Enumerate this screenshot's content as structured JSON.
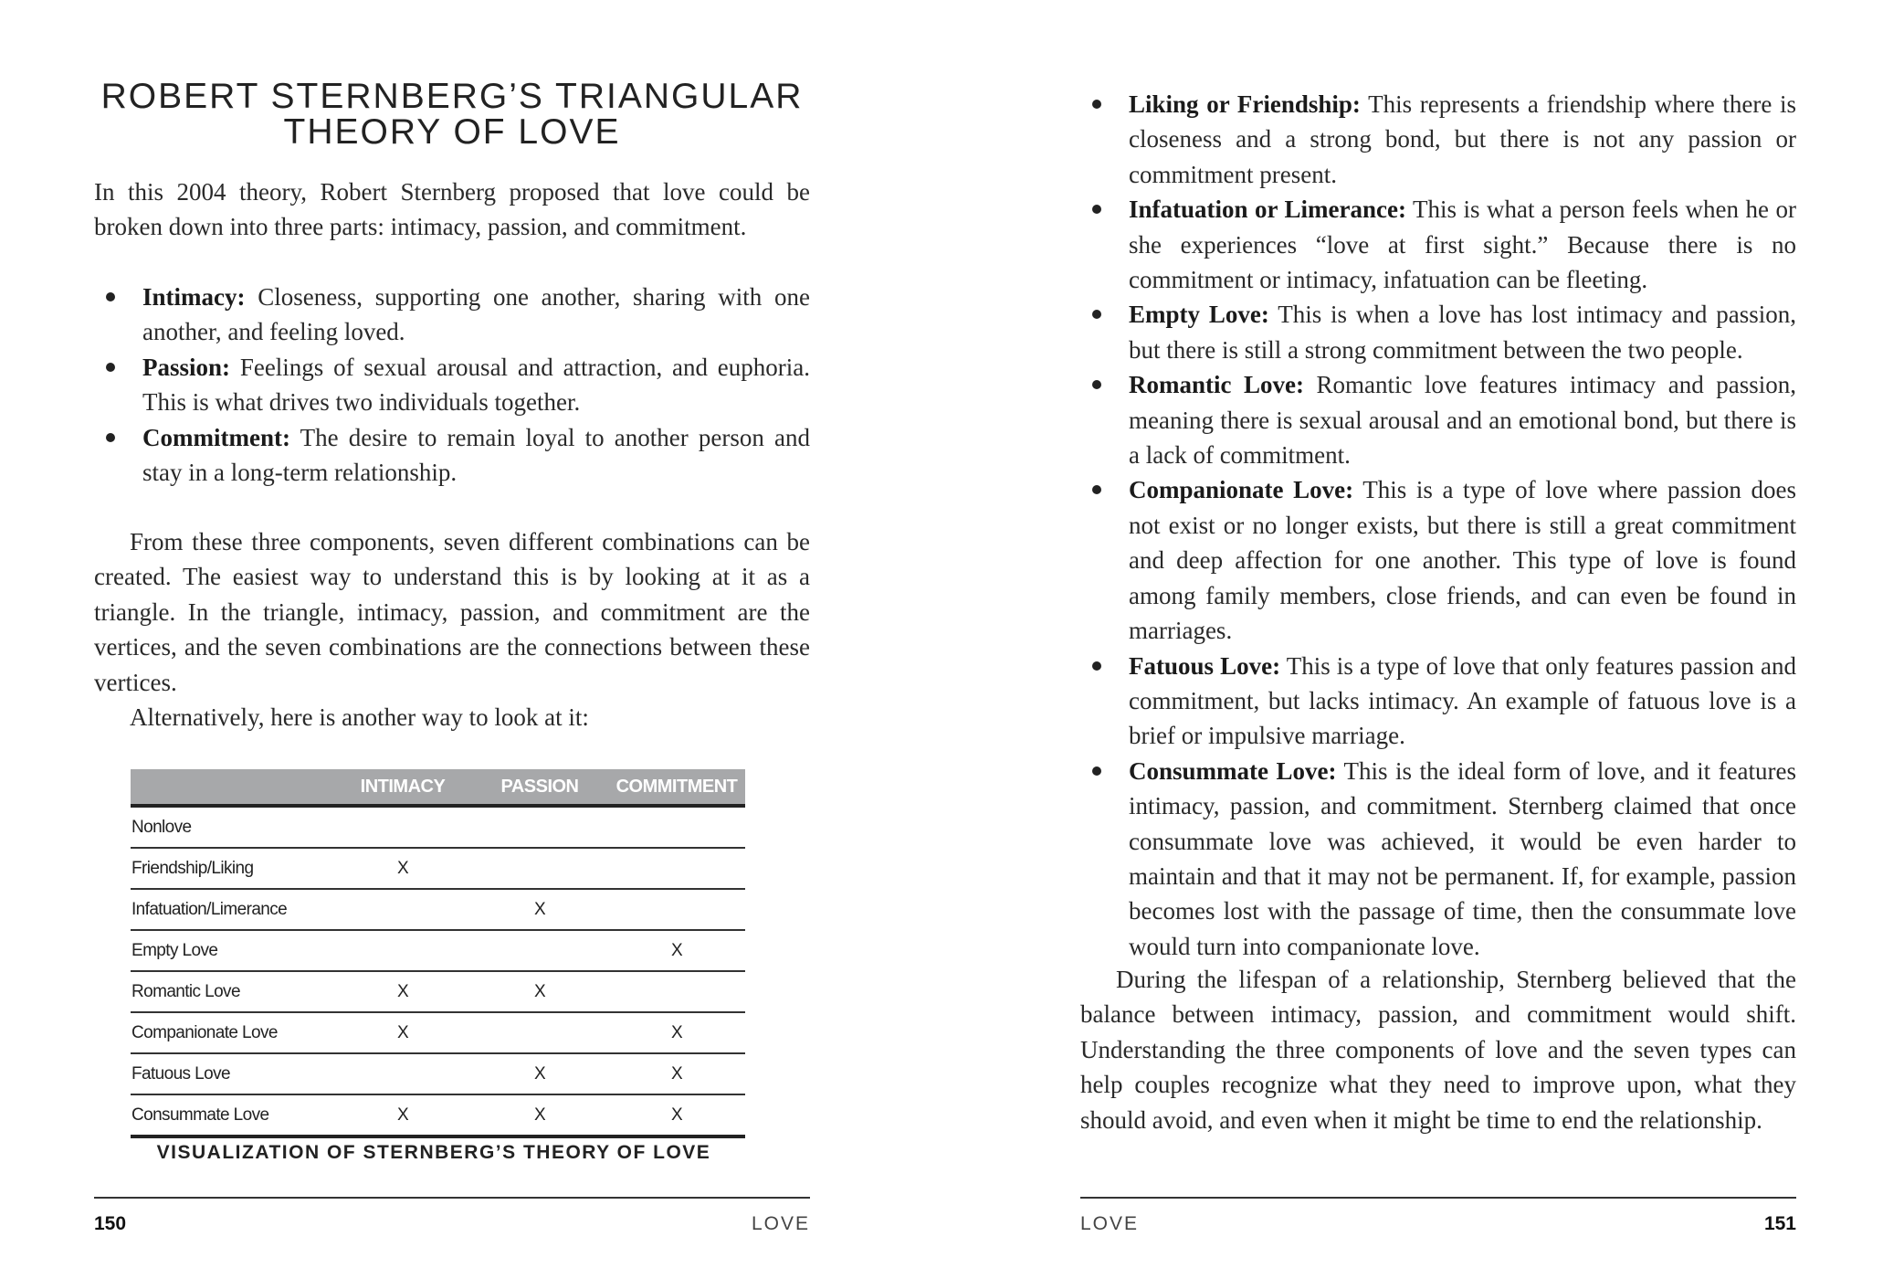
{
  "left_page": {
    "title_line1": "ROBERT STERNBERG’S TRIANGULAR",
    "title_line2": "THEORY OF LOVE",
    "intro": "In this 2004 theory, Robert Sternberg proposed that love could be broken down into three parts: intimacy, passion, and commitment.",
    "components": [
      {
        "term": "Intimacy:",
        "text": "Closeness, supporting one another, sharing with one another, and feeling loved."
      },
      {
        "term": "Passion:",
        "text": "Feelings of sexual arousal and attraction, and euphoria. This is what drives two individuals together."
      },
      {
        "term": "Commitment:",
        "text": "The desire to remain loyal to another person and stay in a long-term relationship."
      }
    ],
    "para2": "From these three components, seven different combinations can be created. The easiest way to understand this is by looking at it as a triangle. In the triangle, intimacy, passion, and commitment are the vertices, and the seven combinations are the connections between these vertices.",
    "para3": "Alternatively, here is another way to look at it:",
    "table": {
      "headers": [
        "",
        "INTIMACY",
        "PASSION",
        "COMMITMENT"
      ],
      "rows": [
        [
          "Nonlove",
          "",
          "",
          ""
        ],
        [
          "Friendship/Liking",
          "X",
          "",
          ""
        ],
        [
          "Infatuation/Limerance",
          "",
          "X",
          ""
        ],
        [
          "Empty Love",
          "",
          "",
          "X"
        ],
        [
          "Romantic Love",
          "X",
          "X",
          ""
        ],
        [
          "Companionate Love",
          "X",
          "",
          "X"
        ],
        [
          "Fatuous Love",
          "",
          "X",
          "X"
        ],
        [
          "Consummate Love",
          "X",
          "X",
          "X"
        ]
      ],
      "caption": "VISUALIZATION OF STERNBERG’S THEORY OF LOVE",
      "header_color": "#a7a8aa"
    },
    "page_number": "150",
    "running_head": "LOVE"
  },
  "right_page": {
    "types": [
      {
        "term": "Liking or Friendship:",
        "text": "This represents a friendship where there is closeness and a strong bond, but there is not any passion or commitment present."
      },
      {
        "term": "Infatuation or Limerance:",
        "text": "This is what a person feels when he or she experiences “love at first sight.” Because there is no commitment or intimacy, infatuation can be fleeting."
      },
      {
        "term": "Empty Love:",
        "text": "This is when a love has lost intimacy and passion, but there is still a strong commitment between the two people."
      },
      {
        "term": "Romantic Love:",
        "text": "Romantic love features intimacy and passion, meaning there is sexual arousal and an emotional bond, but there is a lack of commitment."
      },
      {
        "term": "Companionate Love:",
        "text": "This is a type of love where passion does not exist or no longer exists, but there is still a great commitment and deep affection for one another. This type of love is found among family members, close friends, and can even be found in marriages."
      },
      {
        "term": "Fatuous Love:",
        "text": "This is a type of love that only features passion and commitment, but lacks intimacy. An example of fatuous love is a brief or impulsive marriage."
      },
      {
        "term": "Consummate Love:",
        "text": "This is the ideal form of love, and it features intimacy, passion, and commitment. Sternberg claimed that once consummate love was achieved, it would be even harder to maintain and that it may not be permanent. If, for example, passion becomes lost with the passage of time, then the consummate love would turn into companionate love."
      }
    ],
    "closing": "During the lifespan of a relationship, Sternberg believed that the balance between intimacy, passion, and commitment would shift. Understanding the three components of love and the seven types can help couples recognize what they need to improve upon, what they should avoid, and even when it might be time to end the relationship.",
    "page_number": "151",
    "running_head": "LOVE"
  }
}
